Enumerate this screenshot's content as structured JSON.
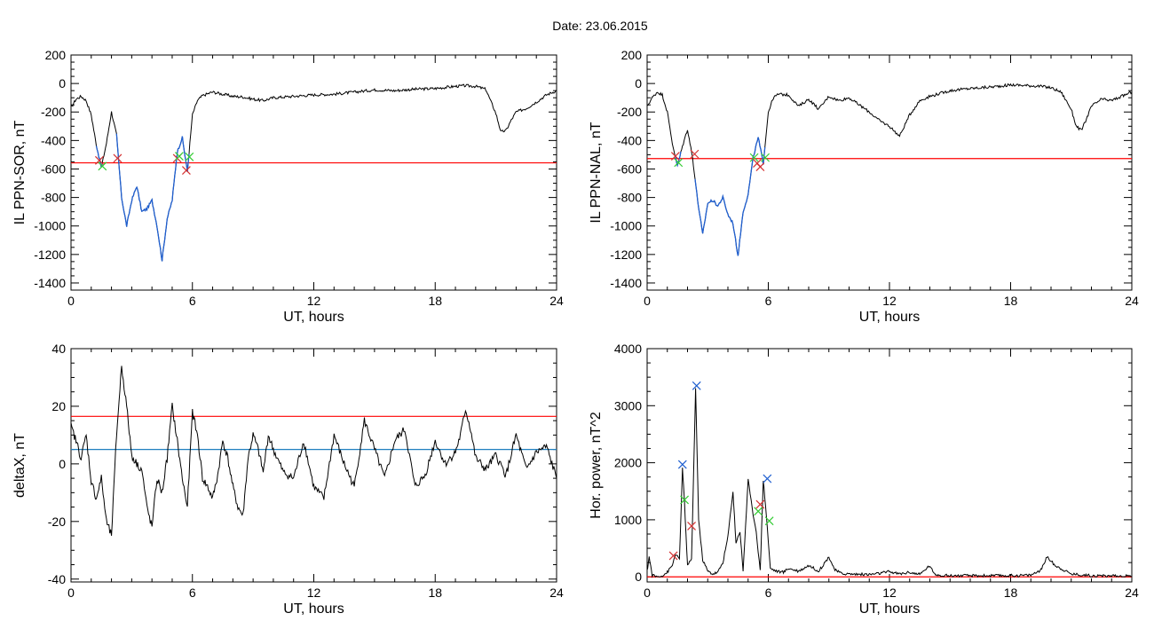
{
  "header": {
    "title": "Date:  23.06.2015"
  },
  "chart_data": [
    {
      "id": "sor",
      "type": "line",
      "title": "",
      "xlabel": "UT, hours",
      "ylabel": "IL PPN-SOR, nT",
      "xlim": [
        0,
        24
      ],
      "ylim": [
        -1450,
        200
      ],
      "xticks": [
        0,
        6,
        12,
        18,
        24
      ],
      "yticks": [
        200,
        0,
        -200,
        -400,
        -600,
        -800,
        -1000,
        -1200,
        -1400
      ],
      "grid": false,
      "colors": {
        "main": "#000000",
        "highlight": "#1f5fd0",
        "threshold": "#ff0000",
        "marker_red": "#d43030",
        "marker_green": "#33cc33"
      },
      "threshold": -557,
      "highlight_ranges": [
        [
          1.25,
          1.55
        ],
        [
          2.25,
          5.85
        ]
      ],
      "series": [
        {
          "x": [
            0,
            0.25,
            0.5,
            0.75,
            1.0,
            1.25,
            1.5,
            1.75,
            2.0,
            2.25,
            2.5,
            2.75,
            3.0,
            3.25,
            3.5,
            3.75,
            4.0,
            4.25,
            4.5,
            4.75,
            5.0,
            5.25,
            5.5,
            5.75,
            6.0,
            6.25,
            6.5,
            7,
            7.5,
            8,
            8.5,
            9,
            9.5,
            10,
            11,
            12,
            13,
            14,
            15,
            16,
            17,
            18,
            19,
            19.5,
            20,
            20.5,
            21,
            21.25,
            21.5,
            21.75,
            22,
            22.5,
            23,
            23.5,
            24
          ],
          "y": [
            -170,
            -110,
            -90,
            -120,
            -220,
            -430,
            -590,
            -420,
            -200,
            -360,
            -800,
            -1000,
            -820,
            -720,
            -900,
            -880,
            -820,
            -1000,
            -1240,
            -950,
            -820,
            -480,
            -380,
            -620,
            -220,
            -120,
            -85,
            -60,
            -75,
            -90,
            -95,
            -110,
            -120,
            -100,
            -90,
            -80,
            -75,
            -60,
            -45,
            -50,
            -40,
            -35,
            -20,
            -15,
            -20,
            -40,
            -210,
            -340,
            -330,
            -260,
            -200,
            -175,
            -130,
            -80,
            -50
          ]
        }
      ],
      "markers": [
        {
          "x": 1.4,
          "y": -540,
          "color": "red"
        },
        {
          "x": 2.3,
          "y": -525,
          "color": "red"
        },
        {
          "x": 5.25,
          "y": -525,
          "color": "red"
        },
        {
          "x": 5.7,
          "y": -610,
          "color": "red"
        },
        {
          "x": 1.55,
          "y": -580,
          "color": "green"
        },
        {
          "x": 5.35,
          "y": -510,
          "color": "green"
        },
        {
          "x": 5.85,
          "y": -515,
          "color": "green"
        }
      ]
    },
    {
      "id": "nal",
      "type": "line",
      "title": "",
      "xlabel": "UT, hours",
      "ylabel": "IL PPN-NAL, nT",
      "xlim": [
        0,
        24
      ],
      "ylim": [
        -1450,
        200
      ],
      "xticks": [
        0,
        6,
        12,
        18,
        24
      ],
      "yticks": [
        200,
        0,
        -200,
        -400,
        -600,
        -800,
        -1000,
        -1200,
        -1400
      ],
      "grid": false,
      "colors": {
        "main": "#000000",
        "highlight": "#1f5fd0",
        "threshold": "#ff0000",
        "marker_red": "#d43030",
        "marker_green": "#33cc33"
      },
      "threshold": -527,
      "highlight_ranges": [
        [
          1.35,
          1.7
        ],
        [
          2.35,
          5.85
        ]
      ],
      "series": [
        {
          "x": [
            0,
            0.25,
            0.5,
            0.75,
            1.0,
            1.25,
            1.5,
            1.75,
            2.0,
            2.25,
            2.5,
            2.75,
            3.0,
            3.25,
            3.5,
            3.75,
            4.0,
            4.25,
            4.5,
            4.75,
            5.0,
            5.25,
            5.5,
            5.75,
            6.0,
            6.25,
            6.5,
            7,
            7.5,
            8,
            8.5,
            9,
            9.5,
            10,
            11,
            11.5,
            12,
            12.5,
            13,
            13.5,
            14,
            15,
            16,
            17,
            18,
            19,
            19.5,
            20,
            20.5,
            21,
            21.25,
            21.5,
            21.75,
            22,
            22.5,
            23,
            23.5,
            24
          ],
          "y": [
            -160,
            -100,
            -60,
            -80,
            -200,
            -420,
            -580,
            -440,
            -320,
            -520,
            -820,
            -1060,
            -840,
            -820,
            -860,
            -800,
            -920,
            -980,
            -1210,
            -900,
            -780,
            -520,
            -380,
            -560,
            -200,
            -100,
            -75,
            -80,
            -160,
            -110,
            -180,
            -90,
            -120,
            -100,
            -200,
            -260,
            -300,
            -370,
            -220,
            -120,
            -90,
            -50,
            -35,
            -25,
            -10,
            -15,
            -20,
            -30,
            -60,
            -180,
            -300,
            -330,
            -250,
            -160,
            -110,
            -120,
            -90,
            -60
          ]
        }
      ],
      "markers": [
        {
          "x": 1.4,
          "y": -510,
          "color": "red"
        },
        {
          "x": 2.35,
          "y": -495,
          "color": "red"
        },
        {
          "x": 5.45,
          "y": -560,
          "color": "red"
        },
        {
          "x": 5.6,
          "y": -585,
          "color": "red"
        },
        {
          "x": 1.55,
          "y": -555,
          "color": "green"
        },
        {
          "x": 5.3,
          "y": -520,
          "color": "green"
        },
        {
          "x": 5.85,
          "y": -520,
          "color": "green"
        }
      ]
    },
    {
      "id": "deltax",
      "type": "line",
      "title": "",
      "xlabel": "UT, hours",
      "ylabel": "deltaX, nT",
      "xlim": [
        0,
        24
      ],
      "ylim": [
        -41,
        40
      ],
      "xticks": [
        0,
        6,
        12,
        18,
        24
      ],
      "yticks": [
        40,
        20,
        0,
        -20,
        -40
      ],
      "grid": false,
      "colors": {
        "main": "#000000",
        "threshold_red": "#ff0000",
        "threshold_blue": "#1f7fbf"
      },
      "hlines": [
        {
          "y": 16.5,
          "color": "red"
        },
        {
          "y": 5,
          "color": "blue"
        }
      ],
      "series": [
        {
          "x": [
            0,
            0.25,
            0.5,
            0.75,
            1.0,
            1.25,
            1.5,
            1.75,
            2.0,
            2.25,
            2.5,
            2.75,
            3.0,
            3.25,
            3.5,
            3.75,
            4.0,
            4.25,
            4.5,
            4.75,
            5.0,
            5.25,
            5.5,
            5.75,
            6.0,
            6.25,
            6.5,
            6.75,
            7.0,
            7.25,
            7.5,
            7.75,
            8.0,
            8.25,
            8.5,
            8.75,
            9.0,
            9.25,
            9.5,
            9.75,
            10,
            10.5,
            11,
            11.5,
            12,
            12.5,
            13,
            13.5,
            14,
            14.5,
            15,
            15.5,
            16,
            16.5,
            17,
            17.5,
            18,
            18.5,
            19,
            19.25,
            19.5,
            19.75,
            20,
            20.5,
            21,
            21.5,
            22,
            22.5,
            23,
            23.5,
            24
          ],
          "y": [
            13,
            8,
            2,
            10,
            -6,
            -12,
            -5,
            -20,
            -25,
            10,
            34,
            20,
            3,
            0,
            -2,
            -15,
            -22,
            -5,
            -10,
            2,
            20,
            8,
            -5,
            -15,
            18,
            10,
            -5,
            -8,
            -12,
            -4,
            8,
            2,
            -8,
            -15,
            -18,
            2,
            10,
            5,
            -3,
            10,
            5,
            -3,
            -5,
            8,
            -8,
            -12,
            10,
            0,
            -8,
            15,
            5,
            -5,
            8,
            12,
            -8,
            -4,
            8,
            0,
            4,
            10,
            19,
            12,
            2,
            -2,
            3,
            -4,
            10,
            -2,
            4,
            6,
            -5
          ]
        }
      ]
    },
    {
      "id": "power",
      "type": "line",
      "title": "",
      "xlabel": "UT, hours",
      "ylabel": "Hor. power, nT^2",
      "xlim": [
        0,
        24
      ],
      "ylim": [
        -90,
        4000
      ],
      "xticks": [
        0,
        6,
        12,
        18,
        24
      ],
      "yticks": [
        4000,
        3000,
        2000,
        1000,
        0
      ],
      "grid": false,
      "colors": {
        "main": "#000000",
        "threshold": "#ff0000",
        "marker_blue": "#1f5fd0",
        "marker_red": "#d43030",
        "marker_green": "#33cc33"
      },
      "threshold": 0,
      "series": [
        {
          "x": [
            0,
            0.1,
            0.25,
            0.5,
            0.75,
            1.0,
            1.25,
            1.4,
            1.6,
            1.75,
            1.85,
            2.0,
            2.2,
            2.4,
            2.55,
            2.75,
            3.0,
            3.25,
            3.5,
            3.75,
            4.0,
            4.25,
            4.4,
            4.6,
            4.75,
            5.0,
            5.2,
            5.4,
            5.6,
            5.75,
            5.9,
            6.1,
            6.4,
            6.75,
            7.0,
            7.5,
            8.0,
            8.5,
            9.0,
            9.3,
            9.6,
            10,
            11,
            11.5,
            12,
            12.5,
            13,
            13.5,
            14,
            14.2,
            14.5,
            15,
            16,
            17,
            18,
            19,
            19.5,
            19.8,
            20.2,
            21,
            22,
            23,
            24
          ],
          "y": [
            100,
            350,
            30,
            0,
            20,
            80,
            200,
            400,
            300,
            1900,
            1300,
            200,
            300,
            3300,
            1000,
            300,
            100,
            50,
            80,
            250,
            700,
            1500,
            600,
            800,
            100,
            1700,
            1200,
            800,
            100,
            1700,
            1100,
            150,
            100,
            80,
            150,
            100,
            200,
            100,
            350,
            120,
            60,
            50,
            40,
            60,
            90,
            50,
            80,
            40,
            200,
            50,
            30,
            20,
            20,
            20,
            20,
            30,
            120,
            350,
            200,
            50,
            20,
            15,
            10
          ]
        }
      ],
      "markers": [
        {
          "x": 1.75,
          "y": 1970,
          "color": "blue"
        },
        {
          "x": 2.45,
          "y": 3350,
          "color": "blue"
        },
        {
          "x": 5.95,
          "y": 1720,
          "color": "blue"
        },
        {
          "x": 1.3,
          "y": 370,
          "color": "red"
        },
        {
          "x": 2.2,
          "y": 890,
          "color": "red"
        },
        {
          "x": 5.6,
          "y": 1270,
          "color": "red"
        },
        {
          "x": 1.85,
          "y": 1350,
          "color": "green"
        },
        {
          "x": 5.5,
          "y": 1150,
          "color": "green"
        },
        {
          "x": 6.05,
          "y": 980,
          "color": "green"
        }
      ]
    }
  ]
}
